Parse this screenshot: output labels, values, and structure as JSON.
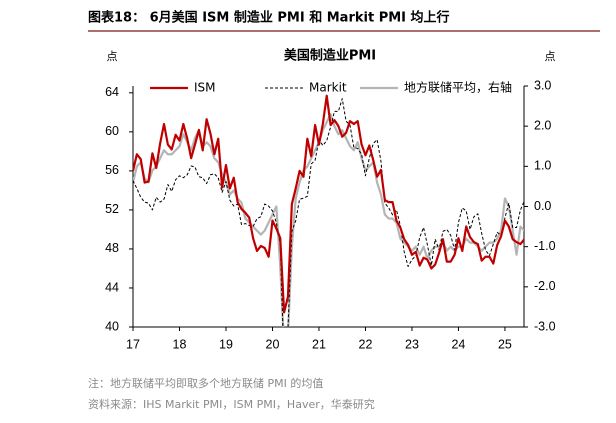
{
  "chart_data": {
    "type": "line",
    "figure_title": "图表18： 6月美国 ISM 制造业 PMI 和 Markit PMI 均上行",
    "title": "美国制造业PMI",
    "ylabel": "点",
    "y2label": "点",
    "note": "注：地方联储平均即取多个地方联储 PMI 的均值",
    "source": "资料来源：IHS Markit PMI，ISM PMI，Haver，华泰研究",
    "xlim": [
      17,
      25.41
    ],
    "xticks": [
      17,
      18,
      19,
      20,
      21,
      22,
      23,
      24,
      25
    ],
    "ylim": [
      40,
      64.7
    ],
    "yticks": [
      40,
      44,
      48,
      52,
      56,
      60,
      64
    ],
    "y2lim": [
      -3,
      3
    ],
    "y2ticks": [
      {
        "value": -3,
        "label": "-3.0"
      },
      {
        "value": -2,
        "label": "-2.0"
      },
      {
        "value": -1,
        "label": "-1.0"
      },
      {
        "value": 0,
        "label": "0.0"
      },
      {
        "value": 1,
        "label": "1.0"
      },
      {
        "value": 2,
        "label": "2.0"
      },
      {
        "value": 3,
        "label": "3.0"
      }
    ],
    "x": [
      17,
      17.083,
      17.167,
      17.25,
      17.333,
      17.417,
      17.5,
      17.583,
      17.667,
      17.75,
      17.833,
      17.917,
      18,
      18.083,
      18.167,
      18.25,
      18.333,
      18.417,
      18.5,
      18.583,
      18.667,
      18.75,
      18.833,
      18.917,
      19,
      19.083,
      19.167,
      19.25,
      19.333,
      19.417,
      19.5,
      19.583,
      19.667,
      19.75,
      19.833,
      19.917,
      20,
      20.083,
      20.167,
      20.25,
      20.333,
      20.417,
      20.5,
      20.583,
      20.667,
      20.75,
      20.833,
      20.917,
      21,
      21.083,
      21.167,
      21.25,
      21.333,
      21.417,
      21.5,
      21.583,
      21.667,
      21.75,
      21.833,
      21.917,
      22,
      22.083,
      22.167,
      22.25,
      22.333,
      22.417,
      22.5,
      22.583,
      22.667,
      22.75,
      22.833,
      22.917,
      23,
      23.083,
      23.167,
      23.25,
      23.333,
      23.417,
      23.5,
      23.583,
      23.667,
      23.75,
      23.833,
      23.917,
      24,
      24.083,
      24.167,
      24.25,
      24.333,
      24.417,
      24.5,
      24.583,
      24.667,
      24.75,
      24.833,
      24.917,
      25,
      25.083,
      25.167,
      25.25,
      25.333,
      25.417
    ],
    "series": [
      {
        "name": "地方联储平均，右轴",
        "color": "#b4b4b4",
        "axis": "y2",
        "values": [
          0.6,
          1.0,
          1.1,
          0.7,
          0.6,
          0.9,
          1.0,
          1.2,
          1.4,
          1.3,
          1.3,
          1.4,
          1.5,
          1.8,
          1.6,
          1.4,
          1.7,
          1.9,
          1.5,
          1.6,
          1.5,
          1.2,
          1.1,
          0.8,
          0.6,
          0.3,
          0.4,
          0.2,
          0.1,
          -0.3,
          -0.4,
          -0.5,
          -0.6,
          -0.7,
          -0.6,
          -0.4,
          -0.2,
          0.0,
          -1.5,
          -3.5,
          -3.2,
          -1.0,
          0.2,
          0.6,
          0.9,
          1.0,
          1.2,
          1.4,
          1.6,
          1.9,
          2.1,
          2.3,
          2.0,
          1.8,
          1.9,
          1.7,
          1.5,
          1.4,
          1.6,
          1.2,
          0.9,
          1.0,
          1.1,
          0.6,
          0.3,
          -0.2,
          -0.3,
          -0.3,
          -0.4,
          -0.8,
          -0.9,
          -1.0,
          -1.1,
          -1.0,
          -1.2,
          -1.0,
          -1.3,
          -1.1,
          -1.0,
          -1.0,
          -0.9,
          -1.1,
          -1.0,
          -1.1,
          -1.0,
          -1.0,
          -0.8,
          -0.9,
          -0.9,
          -1.0,
          -1.1,
          -1.0,
          -0.9,
          -0.9,
          -0.8,
          -0.6,
          0.2,
          0.0,
          -0.6,
          -1.2,
          -0.5,
          -0.6
        ]
      },
      {
        "name": "Markit",
        "color": "#000000",
        "dash": true,
        "values": [
          55.0,
          54.2,
          53.3,
          52.8,
          52.7,
          52.0,
          53.3,
          52.8,
          53.1,
          54.6,
          53.9,
          55.1,
          55.5,
          55.3,
          55.6,
          56.5,
          56.4,
          55.4,
          55.3,
          54.7,
          55.6,
          55.7,
          55.3,
          53.8,
          54.9,
          53.0,
          52.4,
          52.6,
          50.5,
          50.6,
          50.4,
          50.3,
          51.1,
          51.3,
          52.6,
          52.4,
          51.9,
          50.7,
          48.5,
          36.1,
          39.8,
          49.8,
          50.9,
          53.1,
          53.2,
          53.4,
          56.7,
          57.1,
          59.2,
          58.6,
          59.1,
          60.5,
          62.1,
          62.1,
          63.4,
          61.1,
          60.7,
          58.4,
          58.3,
          57.7,
          55.5,
          57.3,
          58.8,
          59.2,
          57.0,
          52.7,
          52.2,
          51.5,
          52.0,
          50.4,
          47.7,
          46.2,
          46.9,
          47.3,
          49.2,
          50.2,
          48.4,
          46.3,
          49.0,
          47.9,
          49.8,
          50.0,
          49.4,
          47.9,
          50.7,
          52.2,
          51.9,
          50.0,
          51.3,
          51.6,
          49.6,
          47.9,
          47.3,
          48.5,
          49.7,
          49.4,
          51.2,
          52.7,
          50.2,
          50.2,
          52.0,
          52.9
        ]
      },
      {
        "name": "ISM",
        "color": "#c00000",
        "values": [
          56.0,
          57.7,
          57.2,
          54.8,
          54.9,
          57.8,
          56.3,
          58.8,
          60.8,
          58.7,
          58.2,
          59.7,
          59.1,
          60.8,
          59.3,
          57.3,
          58.7,
          60.2,
          58.1,
          61.3,
          59.8,
          57.7,
          59.3,
          54.3,
          56.6,
          54.2,
          55.3,
          52.8,
          52.1,
          51.7,
          51.2,
          49.1,
          47.8,
          48.3,
          48.1,
          47.2,
          50.9,
          50.1,
          49.1,
          41.5,
          43.1,
          52.6,
          54.2,
          56.0,
          55.4,
          59.3,
          57.5,
          60.7,
          58.7,
          60.8,
          63.7,
          60.7,
          61.2,
          60.6,
          59.5,
          59.9,
          61.1,
          60.8,
          61.1,
          58.7,
          57.6,
          58.6,
          57.1,
          55.4,
          56.1,
          53.0,
          52.8,
          52.8,
          50.9,
          50.2,
          49.0,
          48.4,
          47.4,
          47.7,
          46.3,
          47.1,
          46.9,
          46.0,
          46.4,
          47.6,
          49.0,
          46.7,
          46.7,
          47.4,
          49.1,
          47.8,
          50.3,
          49.2,
          48.7,
          48.5,
          46.8,
          47.2,
          47.2,
          46.5,
          48.4,
          49.3,
          50.9,
          50.3,
          49.0,
          48.7,
          48.5,
          49.0
        ]
      }
    ]
  }
}
